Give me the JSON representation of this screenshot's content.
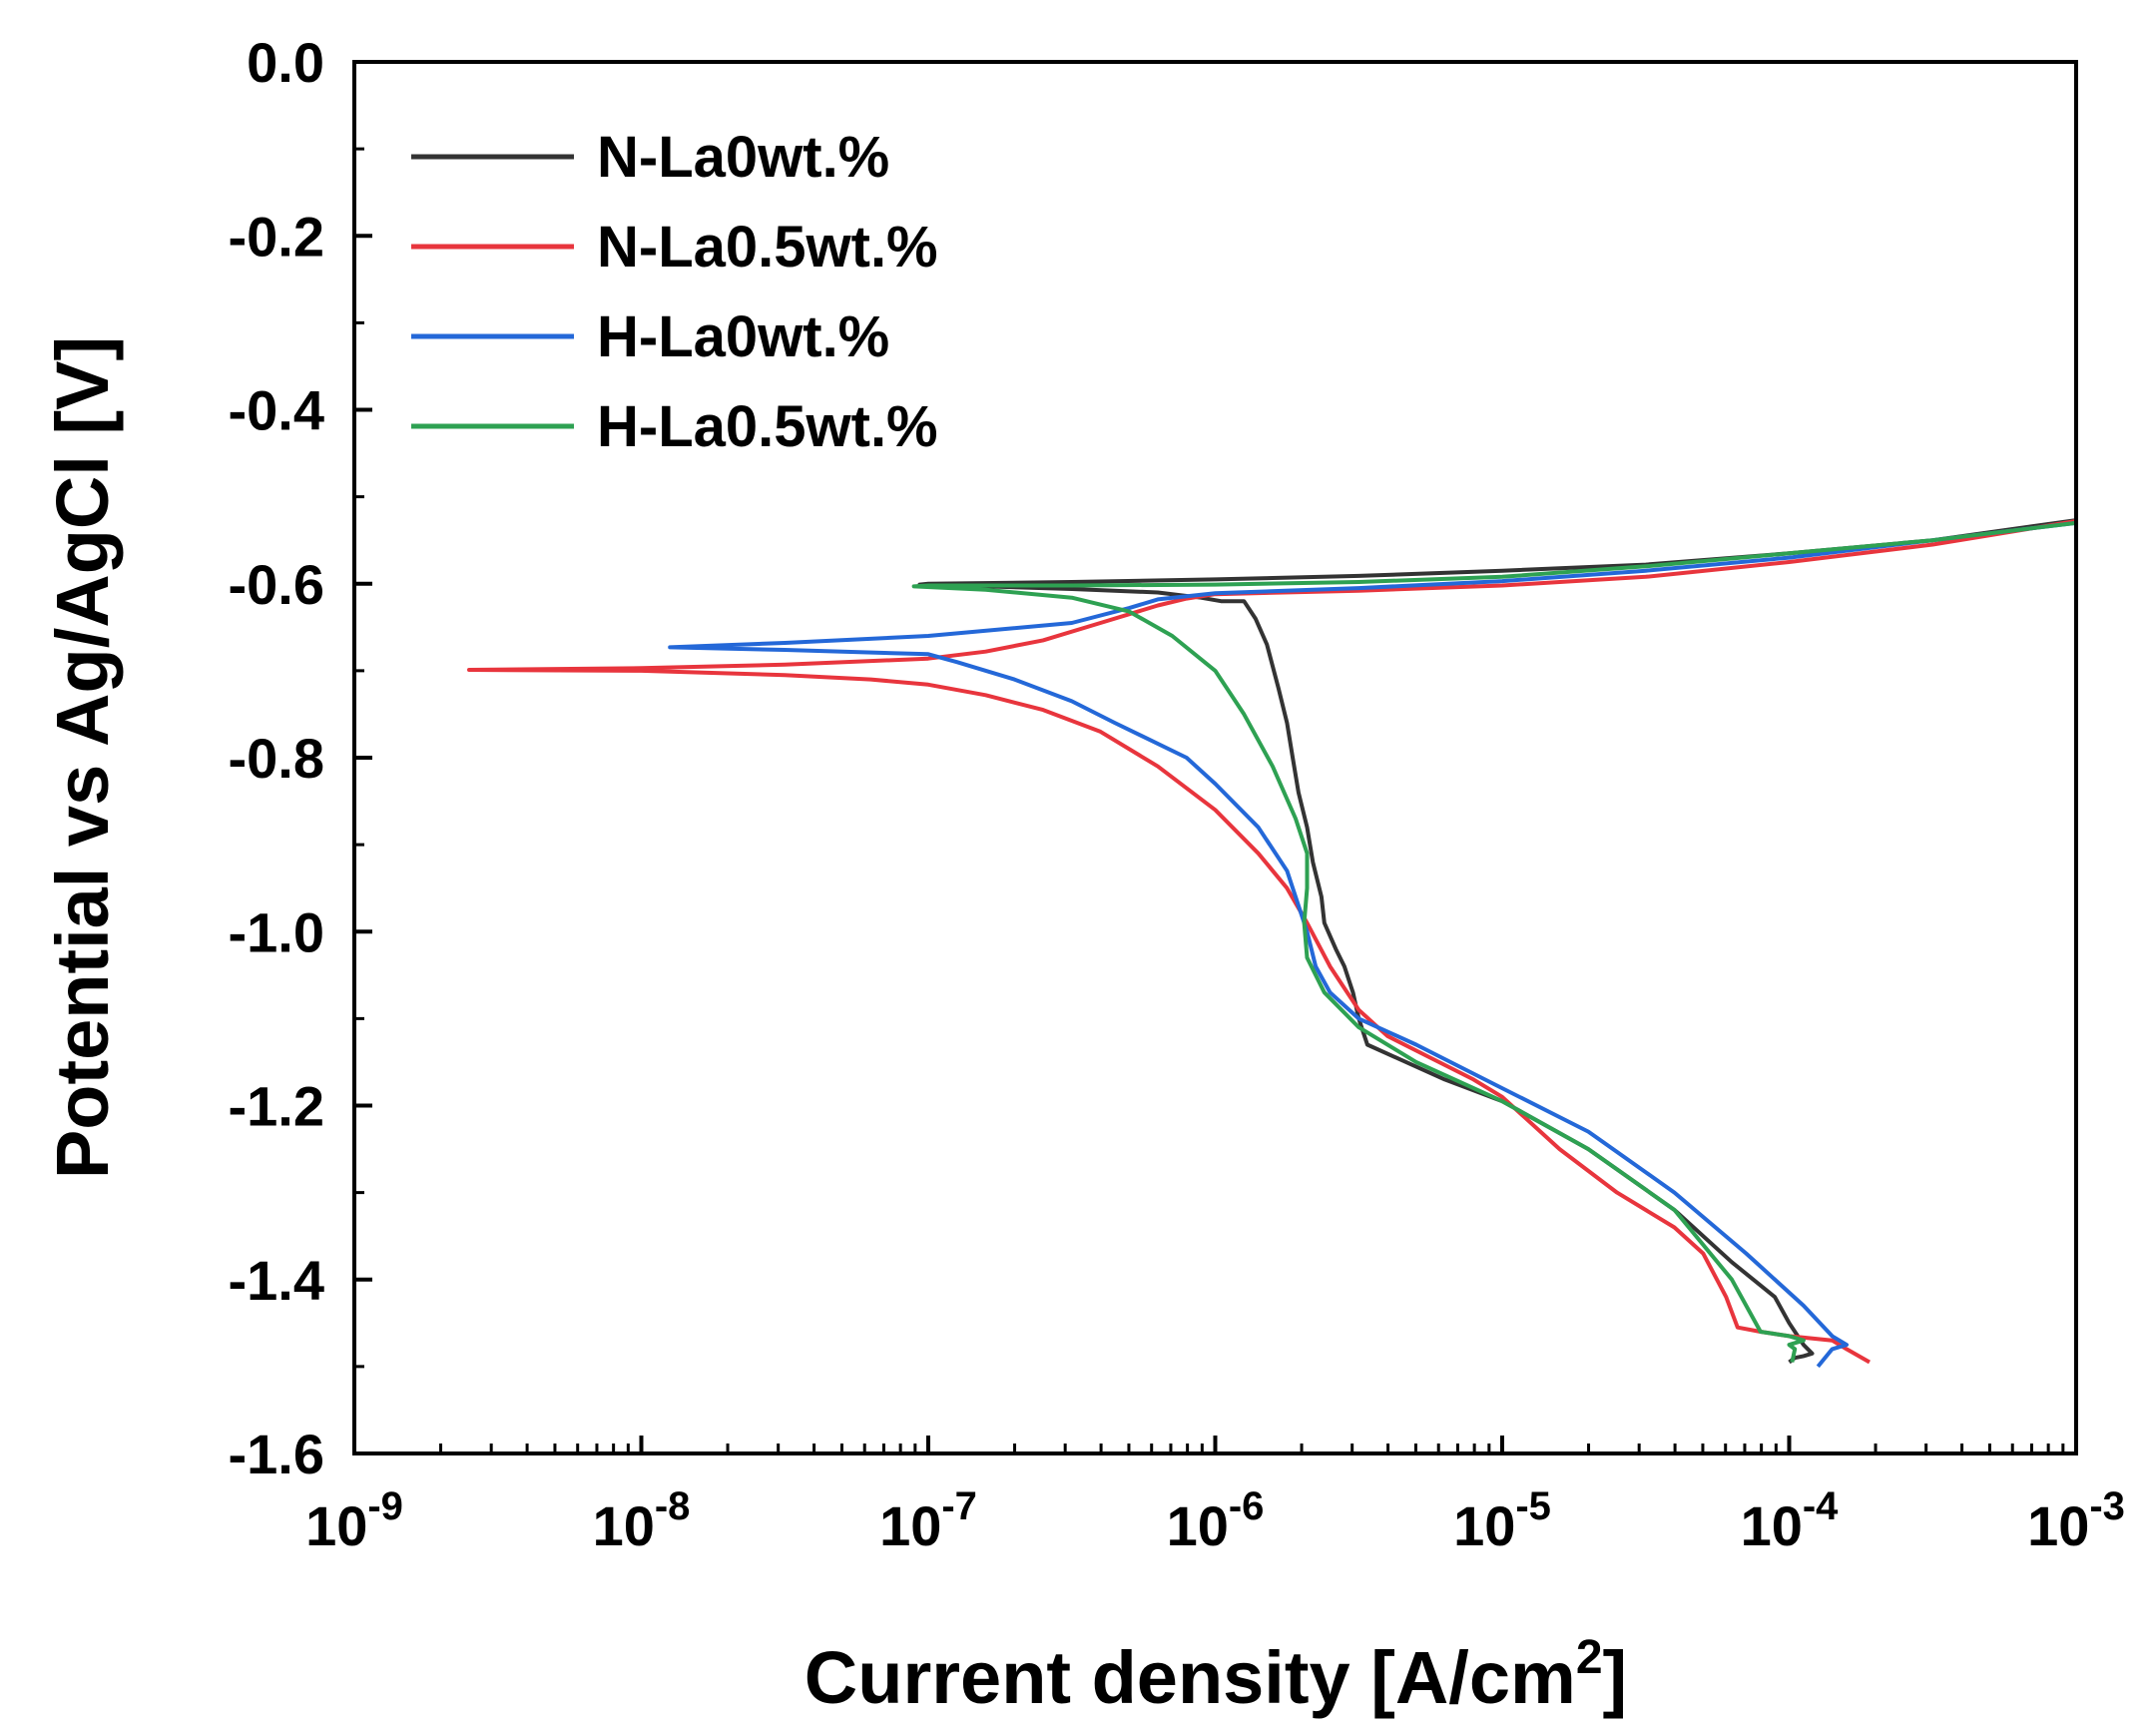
{
  "chart_data": {
    "type": "line",
    "xscale": "log",
    "xlabel": "Current density [A/cm",
    "xlabel_sup": "2",
    "xlabel_tail": "]",
    "ylabel": "Potential vs Ag/AgCl [V]",
    "xlim": [
      1e-09,
      0.001
    ],
    "ylim": [
      -1.6,
      0.0
    ],
    "x_ticks": [
      {
        "exp": -9,
        "base": "10",
        "sup": "-9"
      },
      {
        "exp": -8,
        "base": "10",
        "sup": "-8"
      },
      {
        "exp": -7,
        "base": "10",
        "sup": "-7"
      },
      {
        "exp": -6,
        "base": "10",
        "sup": "-6"
      },
      {
        "exp": -5,
        "base": "10",
        "sup": "-5"
      },
      {
        "exp": -4,
        "base": "10",
        "sup": "-4"
      },
      {
        "exp": -3,
        "base": "10",
        "sup": "-3"
      }
    ],
    "y_ticks": [
      {
        "value": 0.0,
        "label": "0.0"
      },
      {
        "value": -0.2,
        "label": "-0.2"
      },
      {
        "value": -0.4,
        "label": "-0.4"
      },
      {
        "value": -0.6,
        "label": "-0.6"
      },
      {
        "value": -0.8,
        "label": "-0.8"
      },
      {
        "value": -1.0,
        "label": "-1.0"
      },
      {
        "value": -1.2,
        "label": "-1.2"
      },
      {
        "value": -1.4,
        "label": "-1.4"
      },
      {
        "value": -1.6,
        "label": "-1.6"
      }
    ],
    "legend_position": "top-left",
    "series": [
      {
        "name": "N-La0wt.%",
        "color": "#333333",
        "points": [
          [
            -3.0,
            -0.527
          ],
          [
            -3.5,
            -0.55
          ],
          [
            -4.0,
            -0.565
          ],
          [
            -4.5,
            -0.578
          ],
          [
            -5.0,
            -0.585
          ],
          [
            -5.5,
            -0.591
          ],
          [
            -6.0,
            -0.595
          ],
          [
            -6.5,
            -0.598
          ],
          [
            -7.0,
            -0.6
          ],
          [
            -7.03,
            -0.601
          ],
          [
            -6.8,
            -0.603
          ],
          [
            -6.5,
            -0.606
          ],
          [
            -6.2,
            -0.61
          ],
          [
            -6.05,
            -0.616
          ],
          [
            -5.98,
            -0.62
          ],
          [
            -5.9,
            -0.62
          ],
          [
            -5.86,
            -0.64
          ],
          [
            -5.82,
            -0.67
          ],
          [
            -5.78,
            -0.72
          ],
          [
            -5.75,
            -0.76
          ],
          [
            -5.73,
            -0.8
          ],
          [
            -5.71,
            -0.84
          ],
          [
            -5.68,
            -0.88
          ],
          [
            -5.66,
            -0.92
          ],
          [
            -5.63,
            -0.96
          ],
          [
            -5.62,
            -0.99
          ],
          [
            -5.58,
            -1.02
          ],
          [
            -5.55,
            -1.04
          ],
          [
            -5.52,
            -1.07
          ],
          [
            -5.5,
            -1.1
          ],
          [
            -5.47,
            -1.13
          ],
          [
            -5.2,
            -1.17
          ],
          [
            -5.0,
            -1.195
          ],
          [
            -4.7,
            -1.25
          ],
          [
            -4.4,
            -1.32
          ],
          [
            -4.2,
            -1.38
          ],
          [
            -4.05,
            -1.42
          ],
          [
            -4.0,
            -1.45
          ],
          [
            -3.95,
            -1.475
          ],
          [
            -3.92,
            -1.485
          ],
          [
            -3.95,
            -1.488
          ],
          [
            -3.98,
            -1.49
          ],
          [
            -4.0,
            -1.495
          ]
        ]
      },
      {
        "name": "N-La0.5wt.%",
        "color": "#e8353d",
        "points": [
          [
            -3.0,
            -0.528
          ],
          [
            -3.5,
            -0.555
          ],
          [
            -4.0,
            -0.575
          ],
          [
            -4.5,
            -0.592
          ],
          [
            -5.0,
            -0.602
          ],
          [
            -5.5,
            -0.608
          ],
          [
            -6.0,
            -0.612
          ],
          [
            -6.1,
            -0.617
          ],
          [
            -6.2,
            -0.625
          ],
          [
            -6.4,
            -0.645
          ],
          [
            -6.6,
            -0.665
          ],
          [
            -6.8,
            -0.678
          ],
          [
            -7.0,
            -0.686
          ],
          [
            -7.5,
            -0.693
          ],
          [
            -8.0,
            -0.697
          ],
          [
            -8.6,
            -0.699
          ],
          [
            -8.0,
            -0.7
          ],
          [
            -7.5,
            -0.705
          ],
          [
            -7.2,
            -0.71
          ],
          [
            -7.0,
            -0.716
          ],
          [
            -6.8,
            -0.728
          ],
          [
            -6.6,
            -0.745
          ],
          [
            -6.4,
            -0.77
          ],
          [
            -6.2,
            -0.81
          ],
          [
            -6.0,
            -0.86
          ],
          [
            -5.85,
            -0.91
          ],
          [
            -5.75,
            -0.95
          ],
          [
            -5.68,
            -0.99
          ],
          [
            -5.6,
            -1.04
          ],
          [
            -5.5,
            -1.09
          ],
          [
            -5.4,
            -1.12
          ],
          [
            -5.25,
            -1.145
          ],
          [
            -5.1,
            -1.17
          ],
          [
            -5.0,
            -1.19
          ],
          [
            -4.8,
            -1.25
          ],
          [
            -4.6,
            -1.3
          ],
          [
            -4.4,
            -1.34
          ],
          [
            -4.3,
            -1.37
          ],
          [
            -4.22,
            -1.42
          ],
          [
            -4.18,
            -1.455
          ],
          [
            -4.1,
            -1.46
          ],
          [
            -4.0,
            -1.465
          ],
          [
            -3.85,
            -1.47
          ],
          [
            -3.8,
            -1.48
          ],
          [
            -3.72,
            -1.495
          ]
        ]
      },
      {
        "name": "H-La0wt.%",
        "color": "#2468d8",
        "points": [
          [
            -3.0,
            -0.53
          ],
          [
            -3.5,
            -0.55
          ],
          [
            -4.0,
            -0.57
          ],
          [
            -4.5,
            -0.585
          ],
          [
            -5.0,
            -0.597
          ],
          [
            -5.5,
            -0.605
          ],
          [
            -6.0,
            -0.611
          ],
          [
            -6.2,
            -0.618
          ],
          [
            -6.3,
            -0.628
          ],
          [
            -6.5,
            -0.645
          ],
          [
            -7.0,
            -0.66
          ],
          [
            -7.5,
            -0.668
          ],
          [
            -7.9,
            -0.673
          ],
          [
            -7.5,
            -0.676
          ],
          [
            -7.0,
            -0.681
          ],
          [
            -6.9,
            -0.69
          ],
          [
            -6.7,
            -0.71
          ],
          [
            -6.5,
            -0.735
          ],
          [
            -6.35,
            -0.76
          ],
          [
            -6.1,
            -0.8
          ],
          [
            -6.0,
            -0.83
          ],
          [
            -5.85,
            -0.88
          ],
          [
            -5.75,
            -0.93
          ],
          [
            -5.68,
            -1.0
          ],
          [
            -5.65,
            -1.04
          ],
          [
            -5.6,
            -1.07
          ],
          [
            -5.5,
            -1.1
          ],
          [
            -5.3,
            -1.13
          ],
          [
            -5.0,
            -1.18
          ],
          [
            -4.7,
            -1.23
          ],
          [
            -4.4,
            -1.3
          ],
          [
            -4.15,
            -1.37
          ],
          [
            -3.95,
            -1.43
          ],
          [
            -3.85,
            -1.465
          ],
          [
            -3.8,
            -1.475
          ],
          [
            -3.85,
            -1.48
          ],
          [
            -3.9,
            -1.5
          ]
        ]
      },
      {
        "name": "H-La0.5wt.%",
        "color": "#2ea152",
        "points": [
          [
            -3.0,
            -0.53
          ],
          [
            -3.5,
            -0.55
          ],
          [
            -4.0,
            -0.565
          ],
          [
            -4.5,
            -0.58
          ],
          [
            -5.0,
            -0.592
          ],
          [
            -5.5,
            -0.598
          ],
          [
            -6.0,
            -0.601
          ],
          [
            -6.5,
            -0.602
          ],
          [
            -7.0,
            -0.602
          ],
          [
            -7.05,
            -0.603
          ],
          [
            -6.8,
            -0.607
          ],
          [
            -6.5,
            -0.616
          ],
          [
            -6.3,
            -0.632
          ],
          [
            -6.15,
            -0.66
          ],
          [
            -6.0,
            -0.7
          ],
          [
            -5.9,
            -0.75
          ],
          [
            -5.8,
            -0.81
          ],
          [
            -5.72,
            -0.87
          ],
          [
            -5.68,
            -0.91
          ],
          [
            -5.68,
            -0.95
          ],
          [
            -5.69,
            -0.99
          ],
          [
            -5.68,
            -1.03
          ],
          [
            -5.62,
            -1.07
          ],
          [
            -5.5,
            -1.11
          ],
          [
            -5.3,
            -1.15
          ],
          [
            -5.0,
            -1.195
          ],
          [
            -4.7,
            -1.25
          ],
          [
            -4.4,
            -1.32
          ],
          [
            -4.2,
            -1.4
          ],
          [
            -4.1,
            -1.46
          ],
          [
            -4.0,
            -1.465
          ],
          [
            -3.95,
            -1.47
          ],
          [
            -4.0,
            -1.475
          ],
          [
            -3.98,
            -1.48
          ],
          [
            -3.99,
            -1.495
          ]
        ]
      }
    ]
  }
}
